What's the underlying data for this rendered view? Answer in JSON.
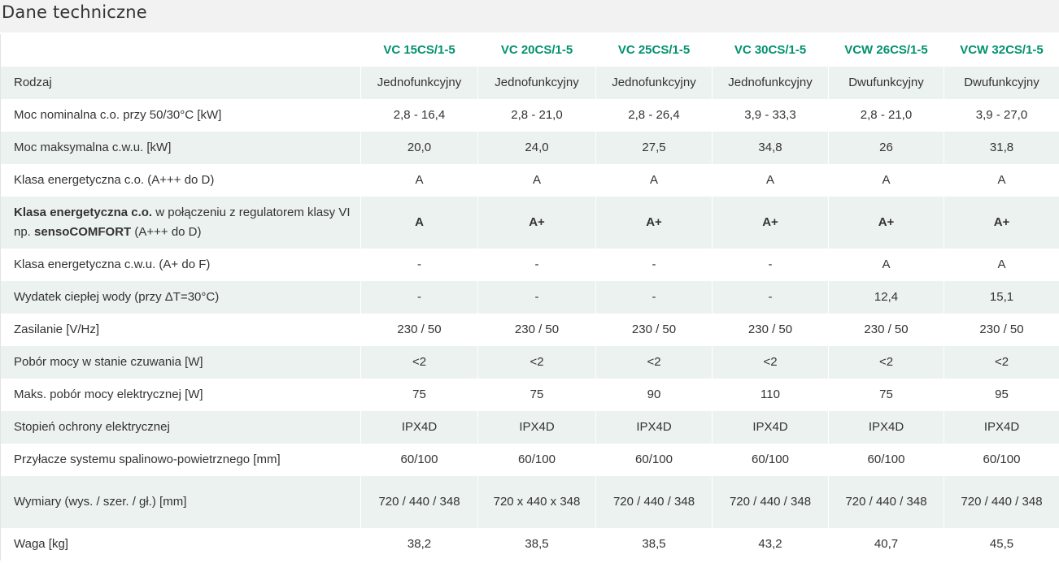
{
  "page": {
    "title": "Dane techniczne"
  },
  "table": {
    "models": [
      "VC 15CS/1-5",
      "VC 20CS/1-5",
      "VC 25CS/1-5",
      "VC 30CS/1-5",
      "VCW 26CS/1-5",
      "VCW 32CS/1-5"
    ],
    "rows": [
      {
        "label": "Rodzaj",
        "values": [
          "Jednofunkcyjny",
          "Jednofunkcyjny",
          "Jednofunkcyjny",
          "Jednofunkcyjny",
          "Dwufunkcyjny",
          "Dwufunkcyjny"
        ]
      },
      {
        "label": "Moc nominalna c.o. przy 50/30°C [kW]",
        "values": [
          "2,8 - 16,4",
          "2,8 - 21,0",
          "2,8 - 26,4",
          "3,9 - 33,3",
          "2,8 - 21,0",
          "3,9 - 27,0"
        ]
      },
      {
        "label": "Moc maksymalna c.w.u. [kW]",
        "values": [
          "20,0",
          "24,0",
          "27,5",
          "34,8",
          "26",
          "31,8"
        ]
      },
      {
        "label": "Klasa energetyczna c.o. (A+++ do D)",
        "values": [
          "A",
          "A",
          "A",
          "A",
          "A",
          "A"
        ]
      },
      {
        "label_parts": {
          "bold1": "Klasa energetyczna c.o.",
          "text1": " w połączeniu z regulatorem klasy VI np. ",
          "bold2": "sensoCOMFORT",
          "text2": " (A+++ do D)"
        },
        "values": [
          "A",
          "A+",
          "A+",
          "A+",
          "A+",
          "A+"
        ]
      },
      {
        "label": "Klasa energetyczna c.w.u. (A+ do F)",
        "values": [
          "-",
          "-",
          "-",
          "-",
          "A",
          "A"
        ]
      },
      {
        "label": "Wydatek ciepłej wody (przy ΔT=30°C)",
        "values": [
          "-",
          "-",
          "-",
          "-",
          "12,4",
          "15,1"
        ]
      },
      {
        "label": "Zasilanie [V/Hz]",
        "values": [
          "230 / 50",
          "230 / 50",
          "230 / 50",
          "230 / 50",
          "230 / 50",
          "230 / 50"
        ]
      },
      {
        "label": "Pobór mocy w stanie czuwania [W]",
        "values": [
          "<2",
          "<2",
          "<2",
          "<2",
          "<2",
          "<2"
        ]
      },
      {
        "label": "Maks. pobór mocy elektrycznej [W]",
        "values": [
          "75",
          "75",
          "90",
          "110",
          "75",
          "95"
        ]
      },
      {
        "label": "Stopień ochrony elektrycznej",
        "values": [
          "IPX4D",
          "IPX4D",
          "IPX4D",
          "IPX4D",
          "IPX4D",
          "IPX4D"
        ]
      },
      {
        "label": "Przyłacze systemu spalinowo-powietrznego [mm]",
        "values": [
          "60/100",
          "60/100",
          "60/100",
          "60/100",
          "60/100",
          "60/100"
        ]
      },
      {
        "label": "Wymiary (wys. / szer. / gł.) [mm]",
        "values": [
          "720 / 440 / 348",
          "720 x 440 x 348",
          "720 / 440 / 348",
          "720 / 440 / 348",
          "720 / 440 / 348",
          "720 / 440 / 348"
        ]
      },
      {
        "label": "Waga [kg]",
        "values": [
          "38,2",
          "38,5",
          "38,5",
          "43,2",
          "40,7",
          "45,5"
        ]
      }
    ]
  },
  "colors": {
    "header_text": "#00916e",
    "row_shade": "#ecf2ef",
    "title_bar": "#f2f2f2"
  }
}
